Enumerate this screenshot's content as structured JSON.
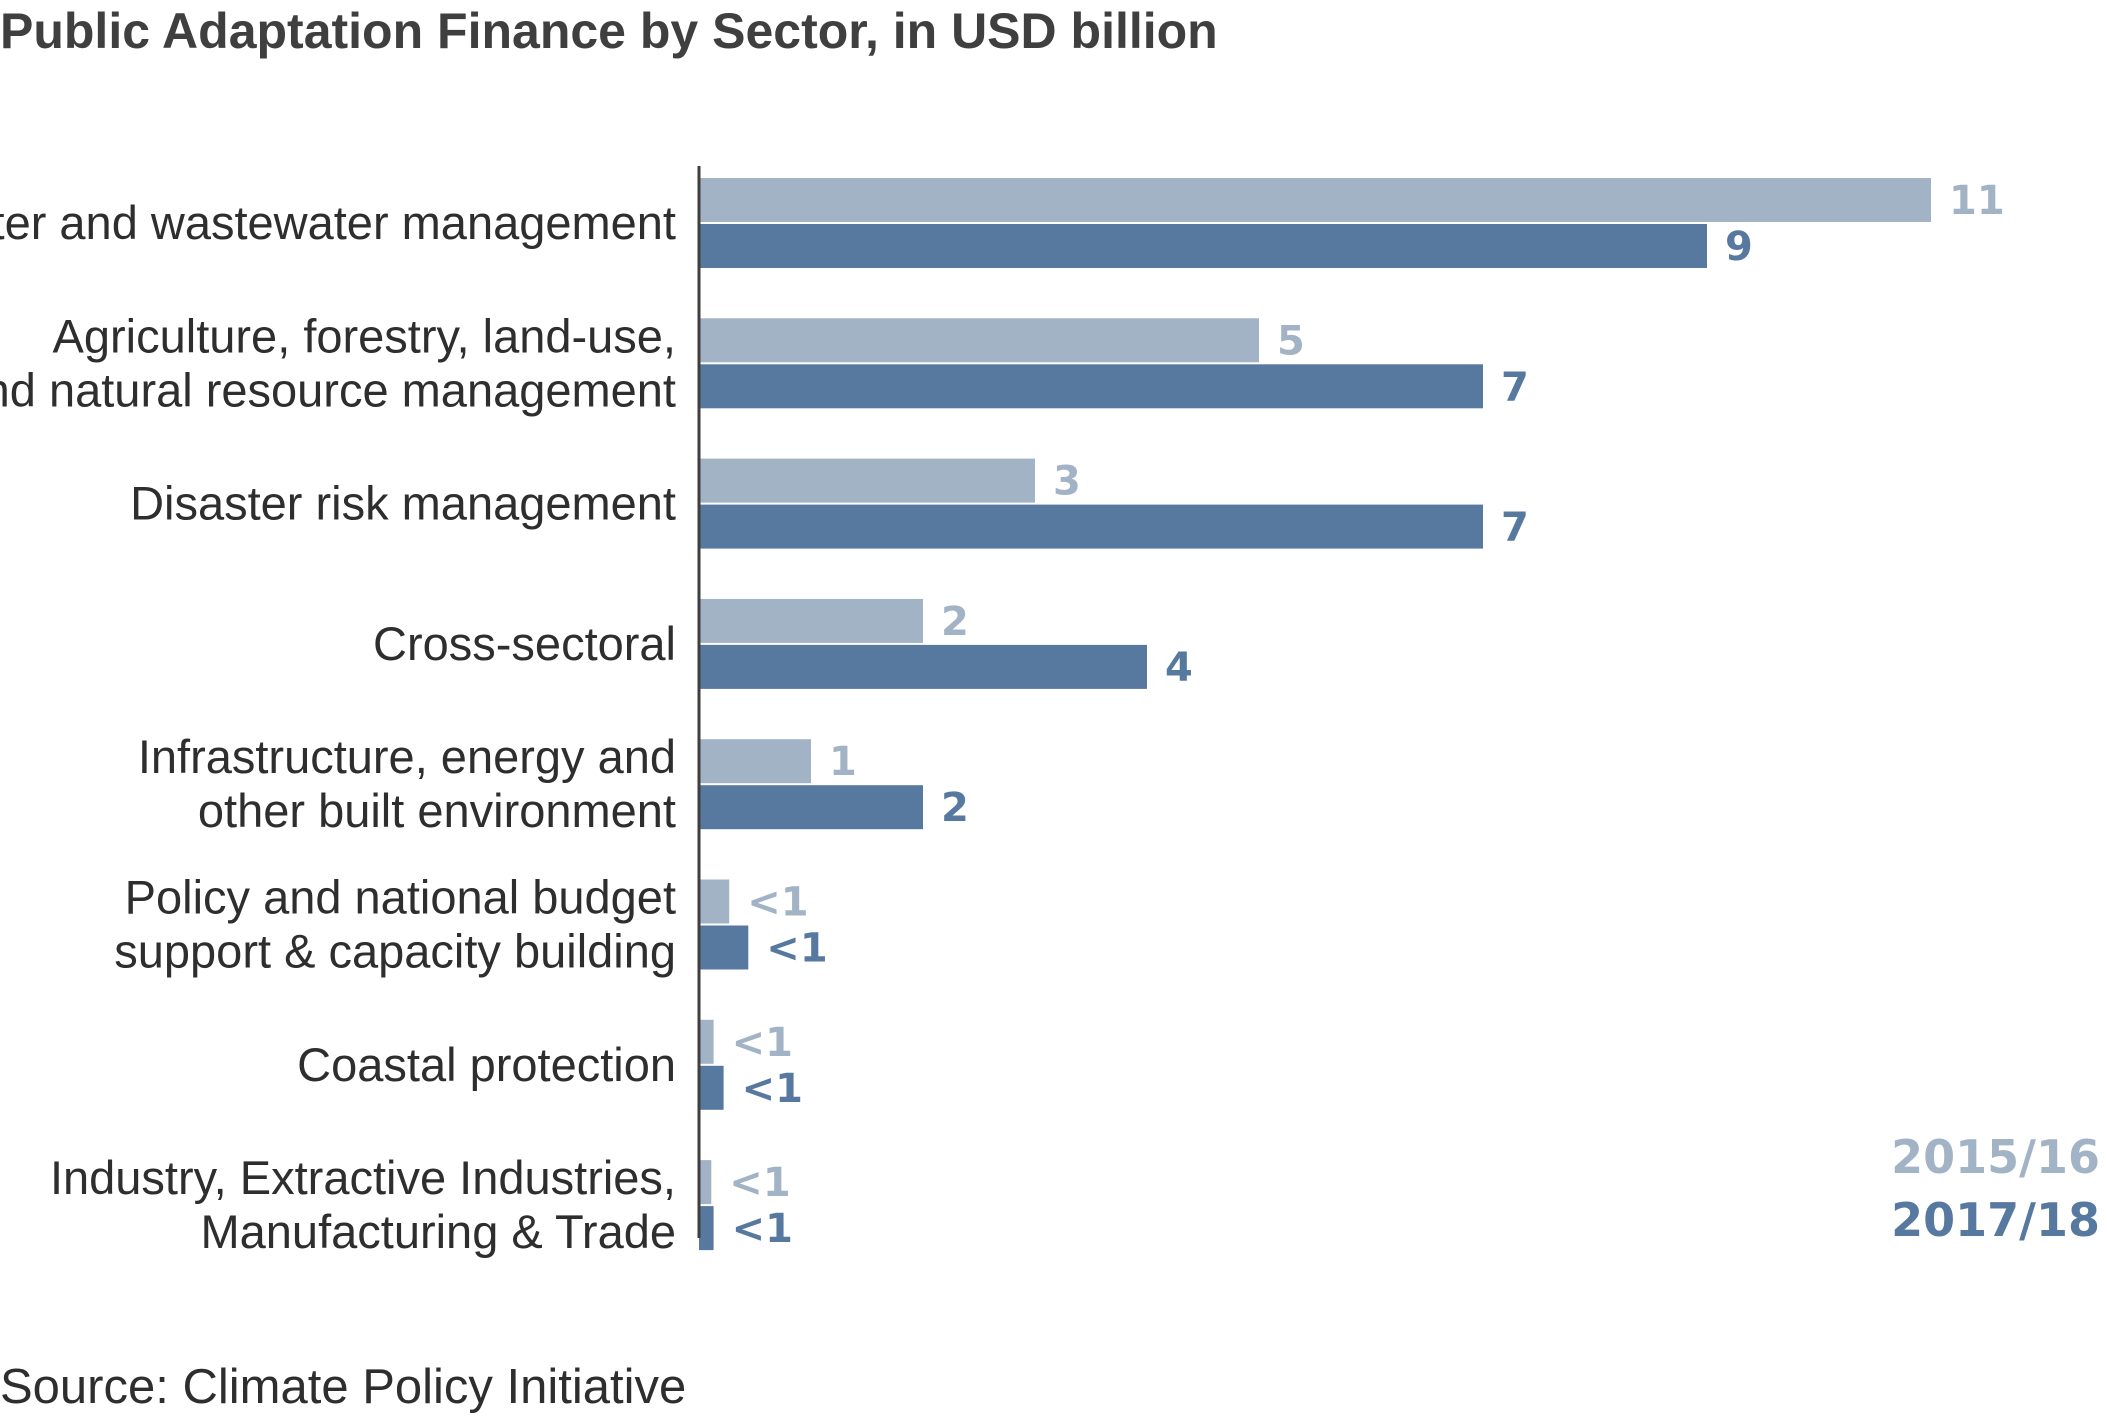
{
  "chart_data": {
    "type": "bar",
    "orientation": "horizontal",
    "title": "Public Adaptation Finance by Sector, in USD billion",
    "source": "Source: Climate Policy Initiative",
    "xlim": [
      0,
      11
    ],
    "grid": false,
    "legend_position": "bottom-right",
    "categories": [
      [
        "Water and wastewater management"
      ],
      [
        "Agriculture, forestry, land-use,",
        "and natural resource management"
      ],
      [
        "Disaster risk management"
      ],
      [
        "Cross-sectoral"
      ],
      [
        "Infrastructure, energy and",
        "other built environment"
      ],
      [
        "Policy and national budget",
        "support & capacity building"
      ],
      [
        "Coastal protection"
      ],
      [
        "Industry, Extractive Industries,",
        "Manufacturing & Trade"
      ]
    ],
    "series": [
      {
        "name": "2015/16",
        "color": "#a3b3c6",
        "values": [
          11,
          5,
          3,
          2,
          1,
          0.27,
          0.13,
          0.11
        ],
        "labels": [
          "11",
          "5",
          "3",
          "2",
          "1",
          "<1",
          "<1",
          "<1"
        ]
      },
      {
        "name": "2017/18",
        "color": "#58799f",
        "values": [
          9,
          7,
          7,
          4,
          2,
          0.44,
          0.22,
          0.13
        ],
        "labels": [
          "9",
          "7",
          "7",
          "4",
          "2",
          "<1",
          "<1",
          "<1"
        ]
      }
    ]
  }
}
